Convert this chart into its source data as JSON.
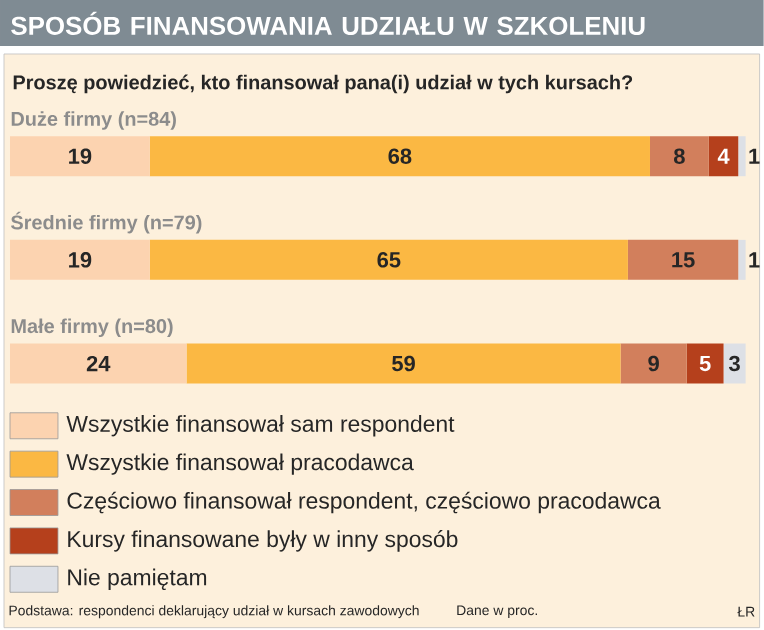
{
  "chart_data": {
    "type": "bar",
    "orientation": "horizontal",
    "stacked": true,
    "data_labels": true,
    "legend": "bottom",
    "title": "SPOSÓB FINANSOWANIA UDZIAŁU W SZKOLENIU",
    "subtitle": "Proszę powiedzieć, kto finansował pana(i) udział w tych kursach?",
    "categories": [
      "Duże firmy (n=84)",
      "Średnie firmy (n=79)",
      "Małe firmy (n=80)"
    ],
    "series": [
      {
        "name": "Wszystkie finansował sam respondent",
        "color": "#fcd3b0",
        "values": [
          19,
          19,
          24
        ]
      },
      {
        "name": "Wszystkie finansował pracodawca",
        "color": "#fbb843",
        "values": [
          68,
          65,
          59
        ]
      },
      {
        "name": "Częściowo finansował respondent, częściowo pracodawca",
        "color": "#d27f5c",
        "values": [
          8,
          15,
          9
        ]
      },
      {
        "name": "Kursy finansowane były w inny sposób",
        "color": "#b5401c",
        "values": [
          4,
          null,
          5
        ]
      },
      {
        "name": "Nie pamiętam",
        "color": "#dde0e6",
        "values": [
          1,
          1,
          3
        ]
      }
    ],
    "annotations": [
      "Podstawa: respondenci deklarujący udział w kursach zawodowych",
      "Dane w proc.",
      "ŁR"
    ]
  }
}
